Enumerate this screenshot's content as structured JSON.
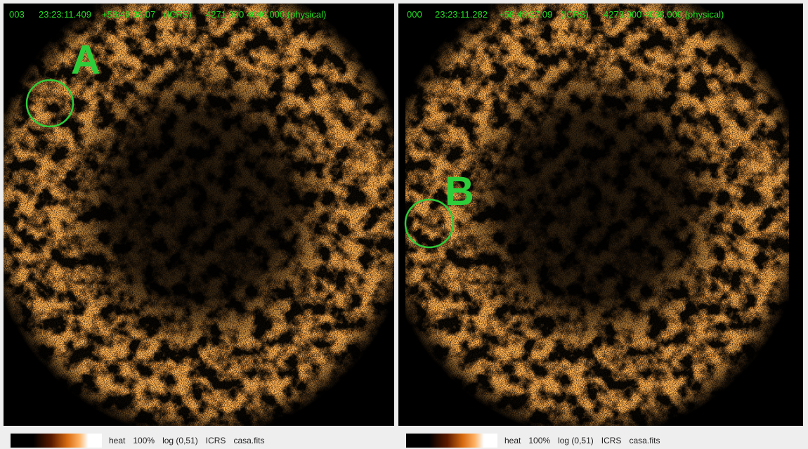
{
  "panels": [
    {
      "frame": "003",
      "ra": "23:23:11.409",
      "dec": "+58:49:38.07",
      "system": "(ICRS)",
      "physical": "4271.000 4040.000 (physical)",
      "label": "A",
      "footer": {
        "colormap": "heat",
        "zoom": "100%",
        "scale": "log (0,51)",
        "system": "ICRS",
        "file": "casa.fits"
      }
    },
    {
      "frame": "000",
      "ra": "23:23:11.282",
      "dec": "+58:49:37.09",
      "system": "(ICRS)",
      "physical": "4273.000 4038.000 (physical)",
      "label": "B",
      "footer": {
        "colormap": "heat",
        "zoom": "100%",
        "scale": "log (0,51)",
        "system": "ICRS",
        "file": "casa.fits"
      }
    }
  ]
}
